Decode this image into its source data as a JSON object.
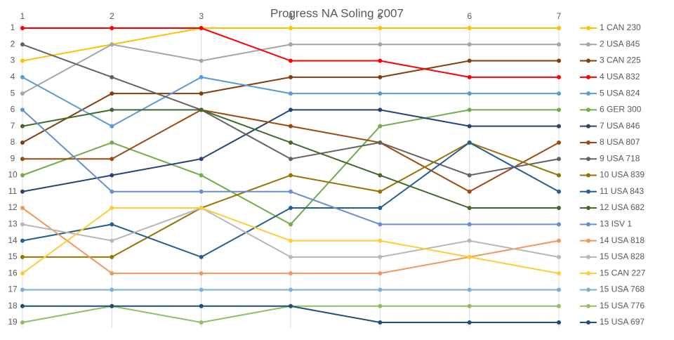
{
  "chart_data": {
    "type": "line",
    "title": "Progress NA Soling 2007",
    "x": [
      1,
      2,
      3,
      4,
      5,
      6,
      7
    ],
    "xlim": [
      1,
      7
    ],
    "xticks": [
      1,
      2,
      3,
      4,
      5,
      6,
      7
    ],
    "ylim": [
      1,
      19
    ],
    "y_reversed": true,
    "yticks": [
      1,
      2,
      3,
      4,
      5,
      6,
      7,
      8,
      9,
      10,
      11,
      12,
      13,
      14,
      15,
      16,
      17,
      18,
      19
    ],
    "grid": true,
    "legend": "right",
    "series": [
      {
        "name": "1 CAN 230",
        "color": "#ffc000",
        "values": [
          3,
          2,
          1,
          1,
          1,
          1,
          1
        ]
      },
      {
        "name": "2 USA 845",
        "color": "#a5a5a5",
        "values": [
          5,
          2,
          3,
          2,
          2,
          2,
          2
        ]
      },
      {
        "name": "3 CAN 225",
        "color": "#843c0c",
        "values": [
          8,
          5,
          5,
          4,
          4,
          3,
          3
        ]
      },
      {
        "name": "4 USA 832",
        "color": "#ff0000",
        "values": [
          1,
          1,
          1,
          3,
          3,
          4,
          4
        ]
      },
      {
        "name": "5 USA 824",
        "color": "#5b9bd5",
        "values": [
          4,
          7,
          4,
          5,
          5,
          5,
          5
        ]
      },
      {
        "name": "6 GER 300",
        "color": "#70ad47",
        "values": [
          10,
          8,
          10,
          13,
          7,
          6,
          6
        ]
      },
      {
        "name": "7 USA 846",
        "color": "#264478",
        "values": [
          11,
          10,
          9,
          6,
          6,
          7,
          7
        ]
      },
      {
        "name": "8 USA 807",
        "color": "#9e480e",
        "values": [
          9,
          9,
          6,
          7,
          8,
          11,
          8
        ]
      },
      {
        "name": "9 USA 718",
        "color": "#636363",
        "values": [
          2,
          4,
          6,
          9,
          8,
          10,
          9
        ]
      },
      {
        "name": "10 USA 839",
        "color": "#997300",
        "values": [
          15,
          15,
          12,
          10,
          11,
          8,
          10
        ]
      },
      {
        "name": "11 USA 843",
        "color": "#255e91",
        "values": [
          14,
          13,
          15,
          12,
          12,
          8,
          11
        ]
      },
      {
        "name": "12 USA 682",
        "color": "#43682b",
        "values": [
          7,
          6,
          6,
          8,
          10,
          12,
          12
        ]
      },
      {
        "name": "13 ISV 1",
        "color": "#698ed0",
        "values": [
          6,
          11,
          11,
          11,
          13,
          13,
          13
        ]
      },
      {
        "name": "14 USA 818",
        "color": "#f1975a",
        "values": [
          12,
          16,
          16,
          16,
          16,
          15,
          14
        ]
      },
      {
        "name": "15 USA 828",
        "color": "#b7b7b7",
        "values": [
          13,
          14,
          12,
          15,
          15,
          14,
          15
        ]
      },
      {
        "name": "15 CAN 227",
        "color": "#ffcd33",
        "values": [
          16,
          12,
          12,
          14,
          14,
          15,
          16
        ]
      },
      {
        "name": "15 USA 768",
        "color": "#7cafdd",
        "values": [
          17,
          17,
          17,
          17,
          17,
          17,
          17
        ]
      },
      {
        "name": "15 USA 776",
        "color": "#8cc168",
        "values": [
          19,
          18,
          19,
          18,
          18,
          18,
          18
        ]
      },
      {
        "name": "15 USA 697",
        "color": "#1f4e79",
        "values": [
          18,
          18,
          18,
          18,
          19,
          19,
          19
        ]
      }
    ]
  }
}
